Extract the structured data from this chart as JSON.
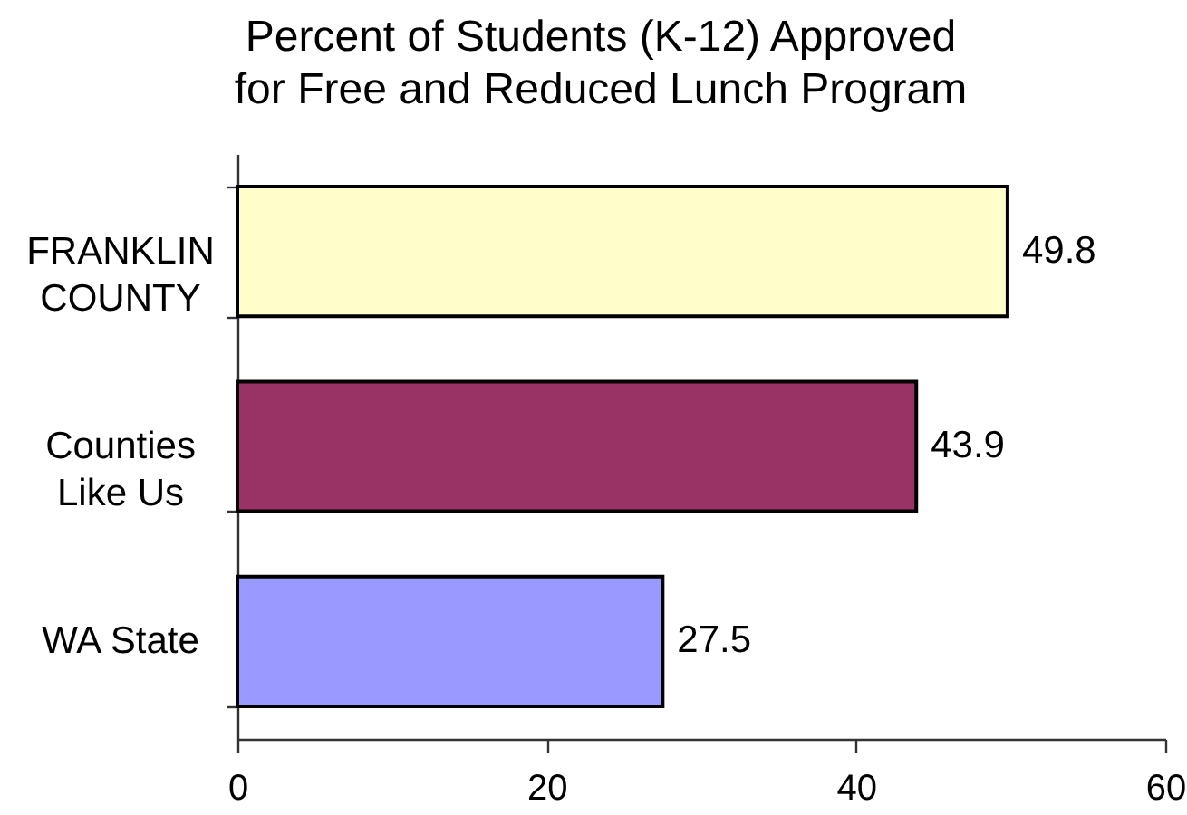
{
  "chart_data": {
    "type": "bar",
    "orientation": "horizontal",
    "title": "Percent of Students (K-12) Approved for Free and Reduced Lunch Program",
    "categories": [
      "FRANKLIN COUNTY",
      "Counties Like Us",
      "WA State"
    ],
    "values": [
      49.8,
      43.9,
      27.5
    ],
    "colors": [
      "#ffffcc",
      "#993366",
      "#9999ff"
    ],
    "xlim": [
      0,
      60
    ],
    "xticks": [
      0,
      20,
      40,
      60
    ],
    "grid": false,
    "legend": false,
    "data_labels": true
  }
}
